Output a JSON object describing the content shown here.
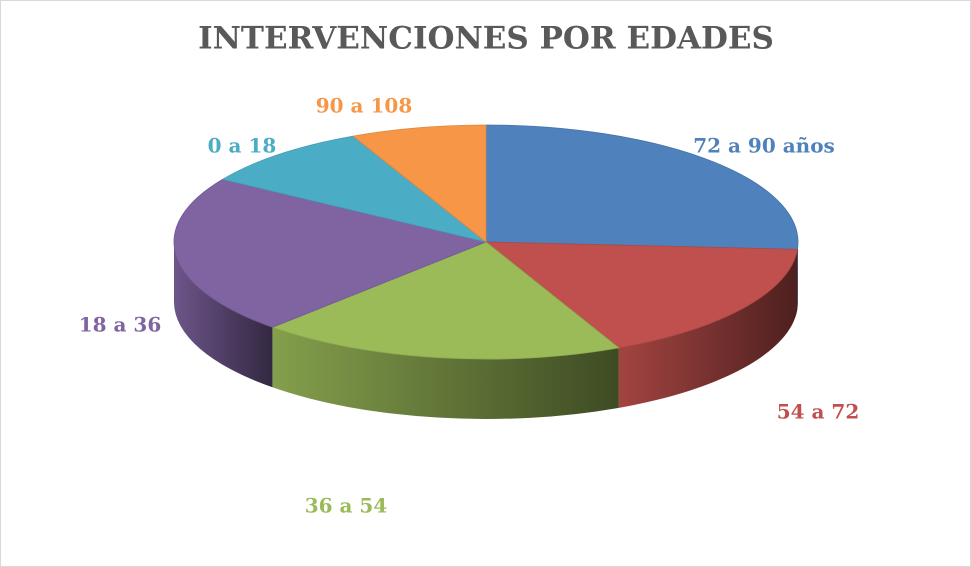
{
  "chart_data": {
    "type": "pie3d",
    "title": "INTERVENCIONES POR EDADES",
    "categories": [
      "72 a 90 años",
      "54 a 72",
      "36 a 54",
      "18 a 36",
      "0 a 18",
      "90 a 108"
    ],
    "values": [
      26,
      17,
      19,
      22,
      9,
      7
    ],
    "colors": [
      "#4f81bd",
      "#c0504d",
      "#9bbb59",
      "#8064a2",
      "#4bacc6",
      "#f79646"
    ]
  }
}
